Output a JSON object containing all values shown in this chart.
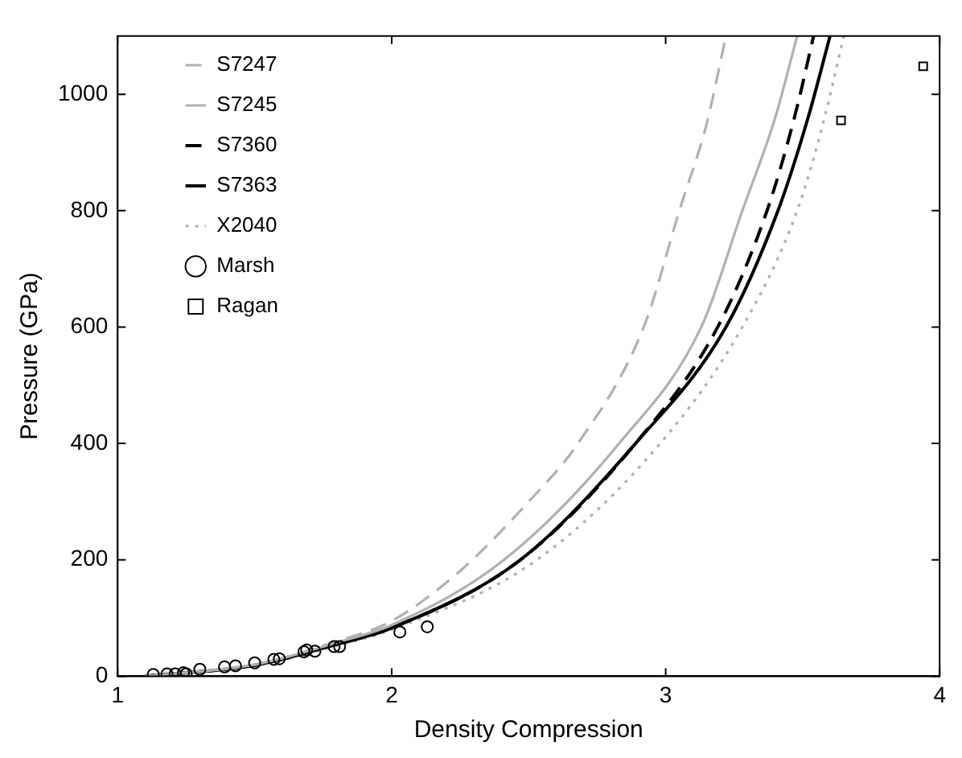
{
  "chart_data": {
    "type": "line",
    "xlabel": "Density Compression",
    "ylabel": "Pressure (GPa)",
    "xlim": [
      1,
      4
    ],
    "ylim": [
      0,
      1100
    ],
    "xticks": [
      1,
      2,
      3,
      4
    ],
    "yticks": [
      0,
      200,
      400,
      600,
      800,
      1000
    ],
    "grid": false,
    "legend": "top left",
    "series": [
      {
        "name": "S7247",
        "type": "line",
        "color": "#b0b0b0",
        "line_style": "dashed",
        "marker": "none",
        "x": [
          1.1,
          1.5,
          1.8,
          2.0,
          2.25,
          2.5,
          2.68,
          2.92,
          3.05,
          3.15,
          3.22
        ],
        "values": [
          0,
          20,
          60,
          95,
          181,
          300,
          400,
          600,
          800,
          950,
          1100
        ]
      },
      {
        "name": "S7245",
        "type": "line",
        "color": "#b0b0b0",
        "line_style": "solid",
        "marker": "none",
        "x": [
          1.1,
          1.5,
          1.8,
          2.0,
          2.41,
          2.83,
          3.13,
          3.28,
          3.4,
          3.48
        ],
        "values": [
          0,
          20,
          58,
          88,
          200,
          400,
          600,
          800,
          960,
          1100
        ]
      },
      {
        "name": "S7360",
        "type": "line",
        "color": "#000000",
        "line_style": "dashed",
        "marker": "none",
        "x": [
          1.1,
          1.5,
          1.8,
          2.0,
          2.47,
          2.89,
          3.19,
          3.37,
          3.47,
          3.54
        ],
        "values": [
          0,
          19,
          55,
          83,
          200,
          400,
          600,
          800,
          960,
          1100
        ]
      },
      {
        "name": "S7363",
        "type": "line",
        "color": "#000000",
        "line_style": "solid",
        "marker": "none",
        "x": [
          1.1,
          1.5,
          1.8,
          2.0,
          2.47,
          2.89,
          3.22,
          3.41,
          3.52,
          3.6
        ],
        "values": [
          0,
          19,
          55,
          83,
          200,
          400,
          600,
          800,
          960,
          1100
        ]
      },
      {
        "name": "X2040",
        "type": "line",
        "color": "#b0b0b0",
        "line_style": "dotted",
        "marker": "none",
        "x": [
          1.1,
          1.5,
          1.8,
          2.0,
          2.53,
          2.98,
          3.28,
          3.48,
          3.58,
          3.65
        ],
        "values": [
          0,
          18,
          52,
          80,
          200,
          400,
          600,
          800,
          960,
          1100
        ]
      },
      {
        "name": "Marsh",
        "type": "scatter",
        "color": "#000000",
        "marker": "circle",
        "x": [
          1.13,
          1.18,
          1.21,
          1.24,
          1.25,
          1.3,
          1.39,
          1.43,
          1.5,
          1.57,
          1.59,
          1.68,
          1.69,
          1.72,
          1.79,
          1.81,
          2.03,
          2.13
        ],
        "values": [
          3,
          4,
          4,
          6,
          4,
          12,
          16,
          18,
          23,
          29,
          30,
          42,
          45,
          43,
          51,
          51,
          76,
          85
        ]
      },
      {
        "name": "Ragan",
        "type": "scatter",
        "color": "#000000",
        "marker": "square",
        "x": [
          3.64,
          3.94
        ],
        "values": [
          955,
          1048
        ]
      }
    ]
  }
}
